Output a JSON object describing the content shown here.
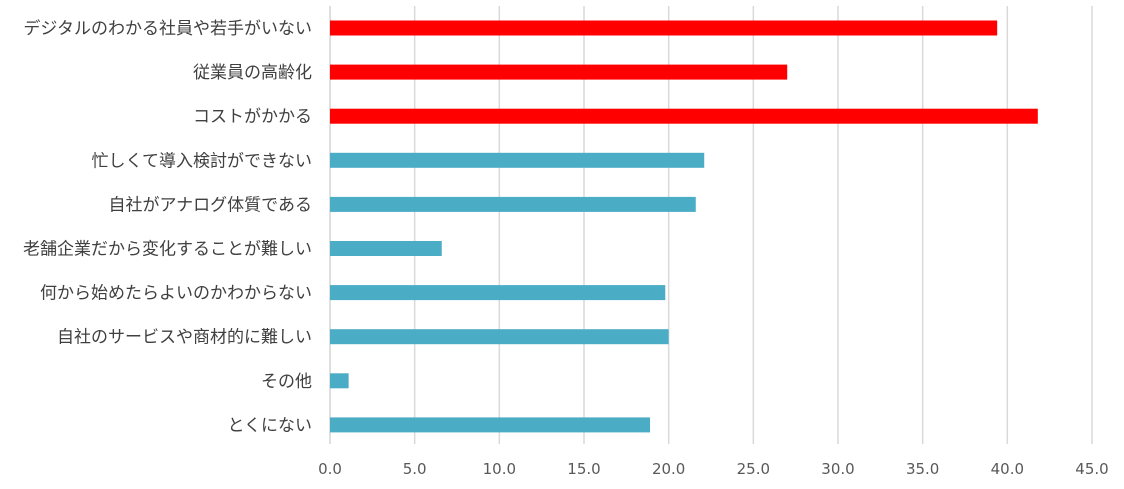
{
  "chart_data": {
    "type": "bar",
    "orientation": "horizontal",
    "categories": [
      "デジタルのわかる社員や若手がいない",
      "従業員の高齢化",
      "コストがかかる",
      "忙しくて導入検討ができない",
      "自社がアナログ体質である",
      "老舗企業だから変化することが難しい",
      "何から始めたらよいのかわからない",
      "自社のサービスや商材的に難しい",
      "その他",
      "とくにない"
    ],
    "values": [
      39.4,
      27.0,
      41.8,
      22.1,
      21.6,
      6.6,
      19.8,
      20.0,
      1.1,
      18.9
    ],
    "bar_colors": [
      "#ff0000",
      "#ff0000",
      "#ff0000",
      "#4bacc6",
      "#4bacc6",
      "#4bacc6",
      "#4bacc6",
      "#4bacc6",
      "#4bacc6",
      "#4bacc6"
    ],
    "xlim": [
      0,
      45
    ],
    "xticks": [
      "0.0",
      "5.0",
      "10.0",
      "15.0",
      "20.0",
      "25.0",
      "30.0",
      "35.0",
      "40.0",
      "45.0"
    ],
    "grid": true,
    "title": "",
    "xlabel": "",
    "ylabel": ""
  }
}
